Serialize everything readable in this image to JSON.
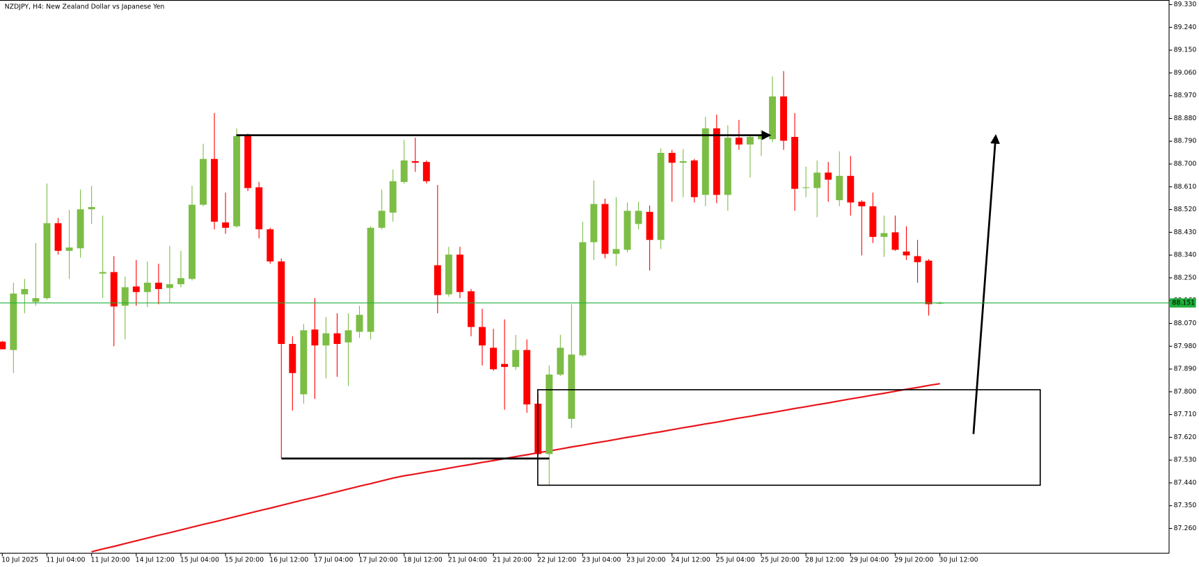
{
  "chart_data": {
    "type": "candlestick",
    "title": "NZDJPY, H4:  New Zealand Dollar vs Japanese Yen",
    "categories": [
      "10 Jul 2025",
      null,
      null,
      null,
      "11 Jul 04:00",
      null,
      null,
      null,
      "11 Jul 20:00",
      null,
      null,
      null,
      "14 Jul 12:00",
      null,
      null,
      null,
      "15 Jul 04:00",
      null,
      null,
      null,
      "15 Jul 20:00",
      null,
      null,
      null,
      "16 Jul 12:00",
      null,
      null,
      null,
      "17 Jul 04:00",
      null,
      null,
      null,
      "17 Jul 20:00",
      null,
      null,
      null,
      "18 Jul 12:00",
      null,
      null,
      null,
      "21 Jul 04:00",
      null,
      null,
      null,
      "21 Jul 20:00",
      null,
      null,
      null,
      "22 Jul 12:00",
      null,
      null,
      null,
      "23 Jul 04:00",
      null,
      null,
      null,
      "23 Jul 20:00",
      null,
      null,
      null,
      "24 Jul 12:00",
      null,
      null,
      null,
      "25 Jul 04:00",
      null,
      null,
      null,
      "25 Jul 20:00",
      null,
      null,
      null,
      "28 Jul 12:00",
      null,
      null,
      null,
      "29 Jul 04:00",
      null,
      null,
      null,
      "29 Jul 20:00",
      null,
      null,
      null,
      "30 Jul 12:00"
    ],
    "open": [
      87.998,
      87.965,
      88.185,
      88.155,
      88.17,
      88.466,
      88.357,
      88.367,
      88.521,
      88.267,
      88.273,
      88.14,
      88.216,
      88.194,
      88.231,
      88.21,
      88.225,
      88.246,
      88.539,
      88.72,
      88.469,
      88.454,
      88.81,
      88.608,
      88.442,
      88.315,
      87.989,
      87.79,
      88.046,
      87.983,
      88.031,
      87.995,
      88.037,
      88.037,
      88.448,
      88.508,
      88.629,
      88.711,
      88.708,
      88.3,
      88.185,
      88.342,
      88.197,
      88.056,
      87.974,
      87.91,
      87.898,
      87.965,
      87.753,
      87.554,
      87.868,
      87.693,
      87.944,
      88.391,
      88.542,
      88.345,
      88.361,
      88.463,
      88.511,
      88.4,
      88.744,
      88.705,
      88.714,
      88.578,
      88.841,
      88.578,
      88.804,
      88.777,
      88.798,
      88.798,
      88.967,
      88.807,
      88.605,
      88.605,
      88.666,
      88.557,
      88.653,
      88.551,
      88.533,
      88.412,
      88.43,
      88.354,
      88.336,
      88.318,
      88.151
    ],
    "high": [
      88.001,
      88.231,
      88.246,
      88.388,
      88.623,
      88.487,
      88.518,
      88.599,
      88.614,
      88.496,
      88.336,
      88.255,
      88.321,
      88.315,
      88.306,
      88.376,
      88.357,
      88.614,
      88.78,
      88.901,
      88.587,
      88.841,
      88.82,
      88.629,
      88.448,
      88.327,
      88.019,
      88.068,
      88.17,
      88.095,
      88.11,
      88.11,
      88.14,
      88.454,
      88.599,
      88.678,
      88.795,
      88.804,
      88.714,
      88.617,
      88.373,
      88.373,
      88.206,
      88.128,
      88.049,
      88.086,
      88.025,
      88.007,
      87.793,
      87.904,
      88.025,
      88.146,
      88.472,
      88.635,
      88.563,
      88.569,
      88.548,
      88.551,
      88.536,
      88.762,
      88.756,
      88.759,
      88.72,
      88.886,
      88.895,
      88.853,
      88.874,
      88.817,
      88.835,
      89.046,
      89.067,
      88.901,
      88.69,
      88.714,
      88.708,
      88.75,
      88.732,
      88.557,
      88.587,
      88.496,
      88.496,
      88.454,
      88.4,
      88.324,
      88.156
    ],
    "low": [
      87.968,
      87.874,
      88.11,
      88.14,
      88.164,
      88.342,
      88.246,
      88.33,
      88.463,
      88.17,
      87.98,
      88.007,
      88.14,
      88.134,
      88.146,
      88.152,
      88.213,
      88.24,
      88.533,
      88.442,
      88.424,
      88.448,
      88.593,
      88.406,
      88.306,
      87.536,
      87.726,
      87.753,
      87.772,
      87.853,
      87.859,
      87.823,
      88.013,
      88.007,
      88.442,
      88.472,
      88.623,
      88.669,
      88.623,
      88.11,
      88.176,
      88.17,
      88.019,
      87.904,
      87.883,
      87.729,
      87.886,
      87.717,
      87.548,
      87.433,
      87.862,
      87.657,
      87.938,
      88.321,
      88.327,
      88.297,
      88.351,
      88.442,
      88.279,
      88.364,
      88.551,
      88.569,
      88.548,
      88.533,
      88.545,
      88.515,
      88.756,
      88.647,
      88.732,
      88.786,
      88.756,
      88.515,
      88.569,
      88.49,
      88.551,
      88.533,
      88.496,
      88.339,
      88.388,
      88.333,
      88.357,
      88.321,
      88.231,
      88.101,
      88.146
    ],
    "close": [
      87.968,
      88.188,
      88.206,
      88.17,
      88.466,
      88.357,
      88.37,
      88.521,
      88.53,
      88.273,
      88.137,
      88.213,
      88.194,
      88.231,
      88.206,
      88.225,
      88.249,
      88.539,
      88.72,
      88.472,
      88.448,
      88.81,
      88.605,
      88.442,
      88.315,
      87.989,
      87.874,
      88.043,
      87.983,
      88.031,
      87.989,
      88.043,
      88.104,
      88.448,
      88.515,
      88.632,
      88.714,
      88.705,
      88.632,
      88.182,
      88.342,
      88.194,
      88.056,
      87.983,
      87.889,
      87.898,
      87.965,
      87.75,
      87.554,
      87.868,
      87.974,
      87.947,
      88.391,
      88.542,
      88.345,
      88.364,
      88.515,
      88.515,
      88.4,
      88.744,
      88.705,
      88.711,
      88.569,
      88.841,
      88.578,
      88.804,
      88.777,
      88.807,
      88.81,
      88.967,
      88.792,
      88.602,
      88.608,
      88.666,
      88.638,
      88.653,
      88.548,
      88.533,
      88.412,
      88.427,
      88.361,
      88.339,
      88.312,
      88.146,
      88.151
    ],
    "up_color": "#7cbd45",
    "down_color": "#ff0000",
    "moving_average": {
      "color": "#e8141a",
      "values": [
        null,
        null,
        null,
        null,
        null,
        null,
        null,
        null,
        87.168,
        87.179,
        87.189,
        87.2,
        87.211,
        87.222,
        87.233,
        87.243,
        87.254,
        87.265,
        87.276,
        87.286,
        87.297,
        87.308,
        87.319,
        87.33,
        87.34,
        87.351,
        87.362,
        87.373,
        87.383,
        87.394,
        87.405,
        87.416,
        87.427,
        87.437,
        87.448,
        87.459,
        87.468,
        87.475,
        87.483,
        87.49,
        87.498,
        87.506,
        87.513,
        87.521,
        87.528,
        87.536,
        87.544,
        87.551,
        87.559,
        87.566,
        87.574,
        87.582,
        87.589,
        87.597,
        87.604,
        87.612,
        87.62,
        87.627,
        87.635,
        87.642,
        87.65,
        87.658,
        87.665,
        87.673,
        87.68,
        87.688,
        87.696,
        87.703,
        87.711,
        87.718,
        87.726,
        87.734,
        87.741,
        87.749,
        87.756,
        87.764,
        87.772,
        87.779,
        87.787,
        87.794,
        87.802,
        87.81,
        87.817,
        87.825,
        87.832
      ]
    },
    "current_price": 88.151,
    "current_price_color": "#1fae3a",
    "ylim": [
      87.162,
      89.348
    ],
    "yticks": [
      {
        "value": 89.33,
        "label": "89.330"
      },
      {
        "value": 89.24,
        "label": "89.240"
      },
      {
        "value": 89.15,
        "label": "89.150"
      },
      {
        "value": 89.06,
        "label": "89.060"
      },
      {
        "value": 88.97,
        "label": "88.970"
      },
      {
        "value": 88.88,
        "label": "88.880"
      },
      {
        "value": 88.79,
        "label": "88.790"
      },
      {
        "value": 88.7,
        "label": "88.700"
      },
      {
        "value": 88.61,
        "label": "88.610"
      },
      {
        "value": 88.52,
        "label": "88.520"
      },
      {
        "value": 88.43,
        "label": "88.430"
      },
      {
        "value": 88.34,
        "label": "88.340"
      },
      {
        "value": 88.25,
        "label": "88.250"
      },
      {
        "value": 88.16,
        "label": "88.160"
      },
      {
        "value": 88.07,
        "label": "88.070"
      },
      {
        "value": 87.98,
        "label": "87.980"
      },
      {
        "value": 87.89,
        "label": "87.890"
      },
      {
        "value": 87.8,
        "label": "87.800"
      },
      {
        "value": 87.71,
        "label": "87.710"
      },
      {
        "value": 87.62,
        "label": "87.620"
      },
      {
        "value": 87.53,
        "label": "87.530"
      },
      {
        "value": 87.44,
        "label": "87.440"
      },
      {
        "value": 87.35,
        "label": "87.350"
      },
      {
        "value": 87.26,
        "label": "87.260"
      }
    ]
  }
}
